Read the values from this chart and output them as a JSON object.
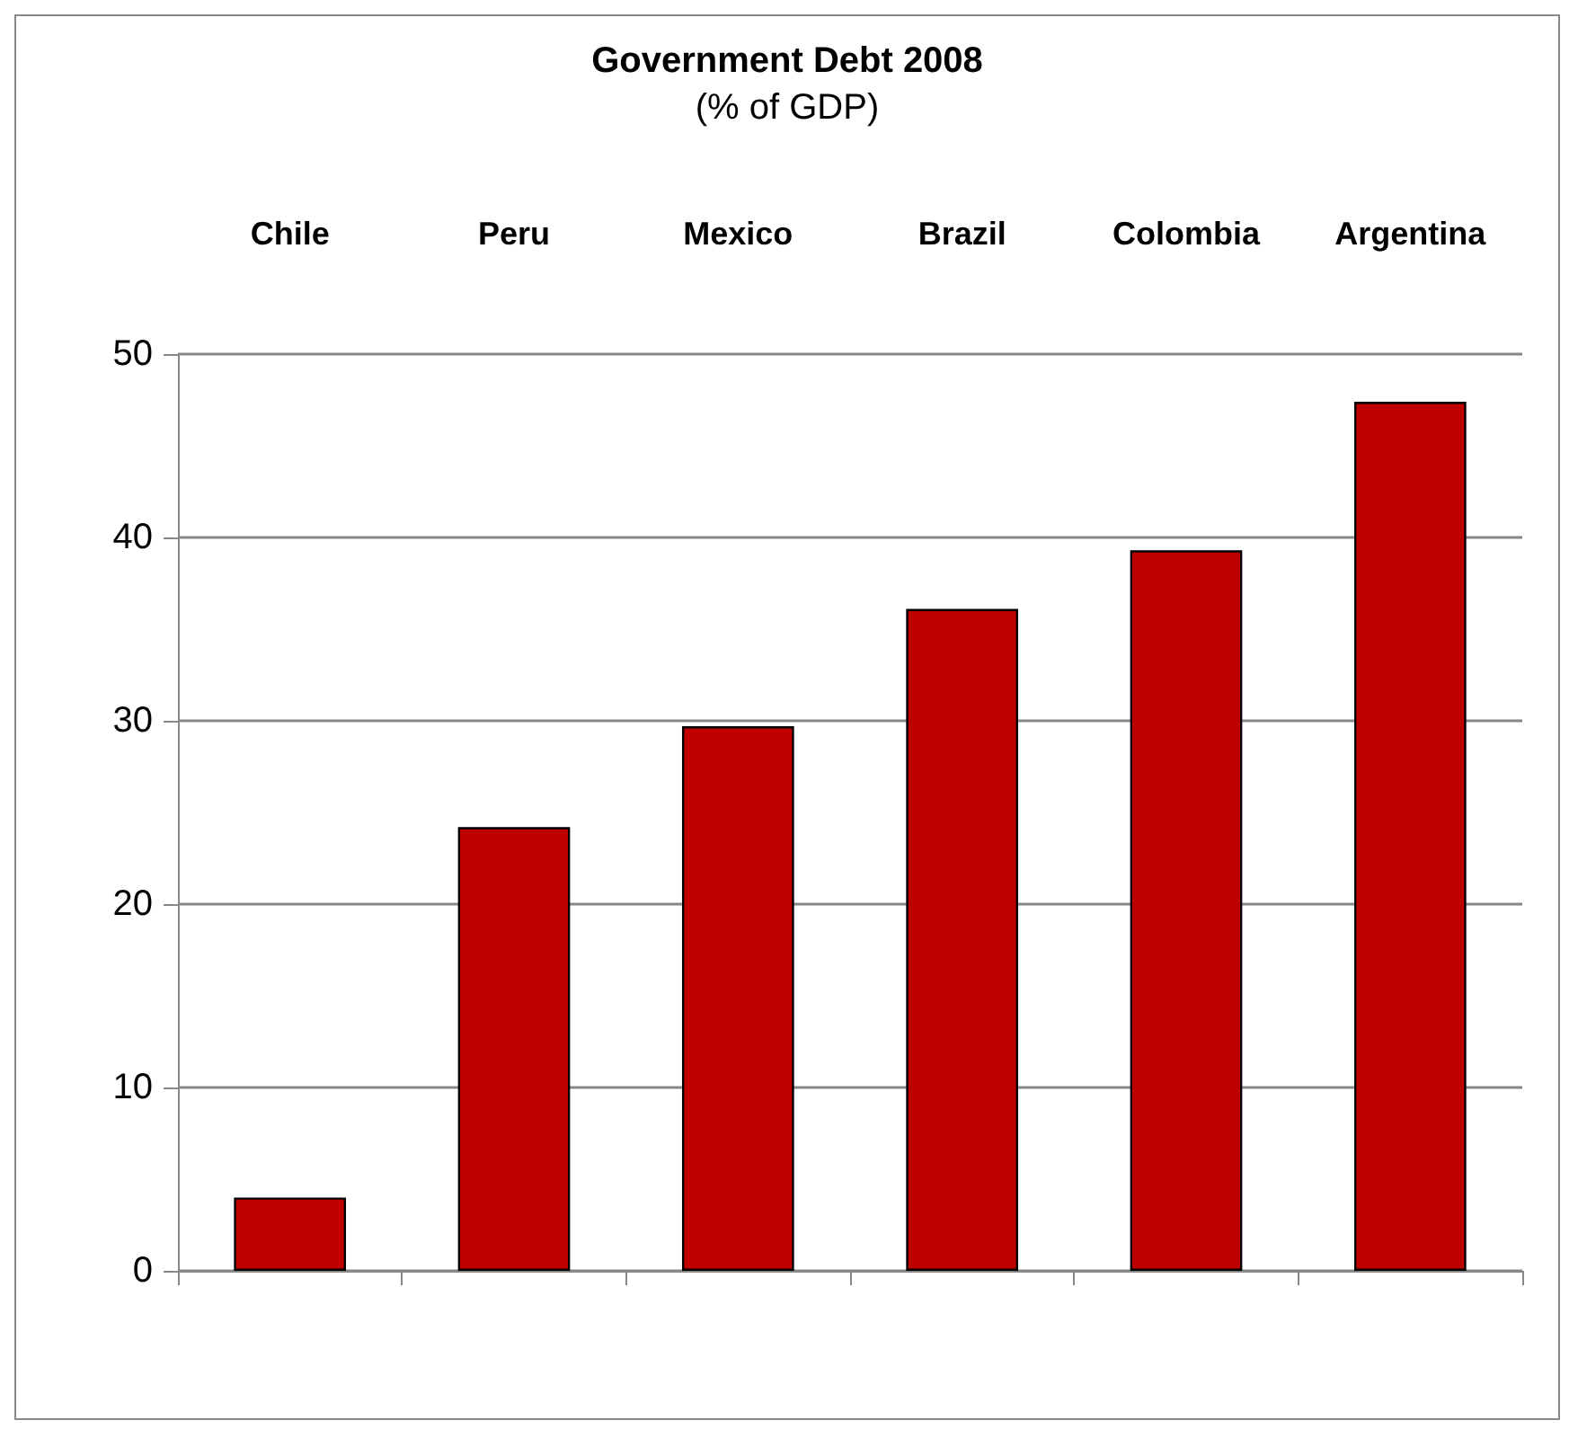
{
  "chart_data": {
    "type": "bar",
    "title": "Government Debt 2008",
    "subtitle": "(% of GDP)",
    "categories": [
      "Chile",
      "Peru",
      "Mexico",
      "Brazil",
      "Colombia",
      "Argentina"
    ],
    "values": [
      4,
      24.2,
      29.7,
      36.1,
      39.3,
      47.4
    ],
    "color": "#c00000",
    "ylim": [
      0,
      50
    ],
    "yticks": [
      0,
      10,
      20,
      30,
      40,
      50
    ],
    "grid": "y"
  }
}
